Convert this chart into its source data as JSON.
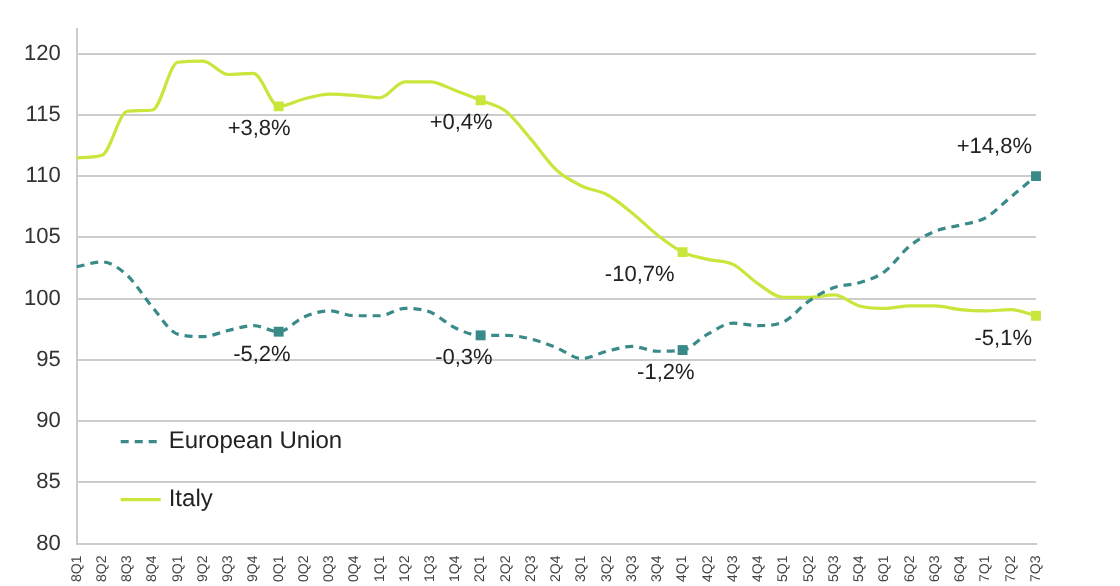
{
  "chart_data": {
    "type": "line",
    "categories": [
      "8Q1",
      "8Q2",
      "8Q3",
      "8Q4",
      "9Q1",
      "9Q2",
      "9Q3",
      "9Q4",
      "0Q1",
      "0Q2",
      "0Q3",
      "0Q4",
      "1Q1",
      "1Q2",
      "1Q3",
      "1Q4",
      "2Q1",
      "2Q2",
      "2Q3",
      "2Q4",
      "3Q1",
      "3Q2",
      "3Q3",
      "3Q4",
      "4Q1",
      "4Q2",
      "4Q3",
      "4Q4",
      "5Q1",
      "5Q2",
      "5Q3",
      "5Q4",
      "6Q1",
      "6Q2",
      "6Q3",
      "6Q4",
      "7Q1",
      "7Q2",
      "7Q3"
    ],
    "series": [
      {
        "name": "European Union",
        "color": "#3a8a8a",
        "line_style": "dashed",
        "values": [
          102.6,
          103.0,
          101.9,
          99.3,
          97.1,
          96.9,
          97.4,
          97.8,
          97.3,
          98.5,
          99.0,
          98.6,
          98.6,
          99.2,
          98.9,
          97.6,
          97.0,
          97.0,
          96.7,
          96.0,
          95.1,
          95.7,
          96.1,
          95.7,
          95.8,
          97.1,
          98.0,
          97.8,
          98.1,
          99.8,
          100.9,
          101.3,
          102.2,
          104.3,
          105.5,
          106.0,
          106.6,
          108.3,
          110.0
        ]
      },
      {
        "name": "Italy",
        "color": "#c8e63c",
        "line_style": "solid",
        "values": [
          111.5,
          111.7,
          115.3,
          115.4,
          119.3,
          119.4,
          118.3,
          118.4,
          115.7,
          116.3,
          116.7,
          116.6,
          116.4,
          117.7,
          117.7,
          117.0,
          116.2,
          115.3,
          113.0,
          110.5,
          109.2,
          108.5,
          107.0,
          105.2,
          103.8,
          103.2,
          102.8,
          101.2,
          100.1,
          100.1,
          100.3,
          99.4,
          99.2,
          99.4,
          99.4,
          99.1,
          99.0,
          99.1,
          98.6
        ]
      }
    ],
    "annotations": [
      {
        "text": "+3,8%",
        "x": "0Q1",
        "y": 115.7
      },
      {
        "text": "+0,4%",
        "x": "2Q1",
        "y": 116.2
      },
      {
        "text": "-10,7%",
        "x": "4Q1",
        "y": 103.8
      },
      {
        "text": "-5,1%",
        "x": "7Q3",
        "y": 98.6
      },
      {
        "text": "-5,2%",
        "x": "0Q1",
        "y": 97.3
      },
      {
        "text": "-0,3%",
        "x": "2Q1",
        "y": 97.0
      },
      {
        "text": "-1,2%",
        "x": "4Q1",
        "y": 95.8
      },
      {
        "text": "+14,8%",
        "x": "7Q3",
        "y": 110.0
      }
    ],
    "ylim": [
      80,
      122
    ],
    "yticks": [
      80,
      85,
      90,
      95,
      100,
      105,
      110,
      115,
      120
    ],
    "grid": "y",
    "legend": "bottom left"
  }
}
